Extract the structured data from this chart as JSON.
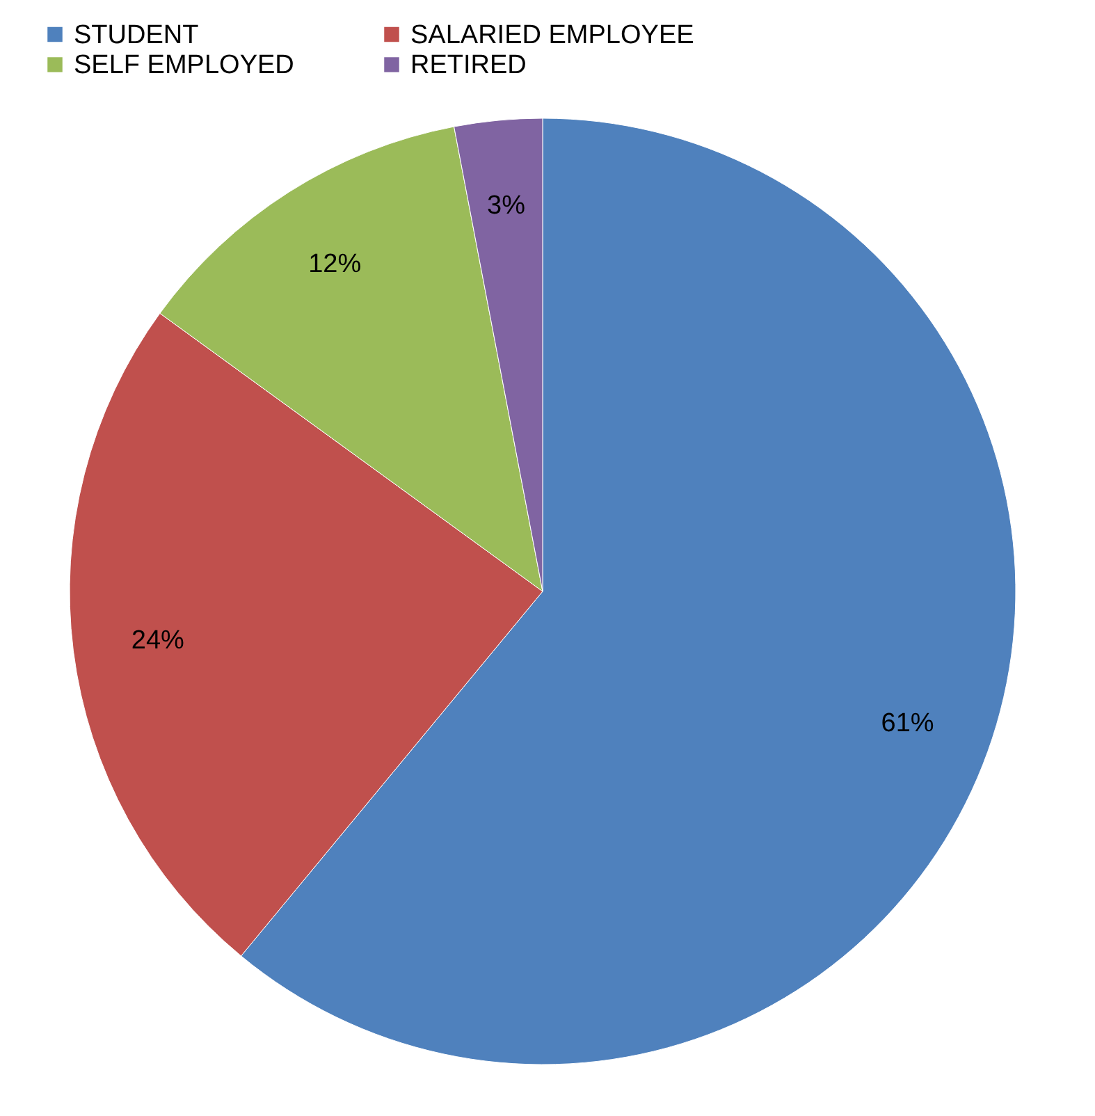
{
  "chart_data": {
    "type": "pie",
    "categories": [
      "STUDENT",
      "SALARIED EMPLOYEE",
      "SELF EMPLOYED",
      "RETIRED"
    ],
    "values": [
      61,
      24,
      12,
      3
    ],
    "colors": [
      "#4f81bd",
      "#c0504d",
      "#9bbb59",
      "#8064a2"
    ],
    "value_labels": [
      "61%",
      "24%",
      "12%",
      "3%"
    ],
    "legend": "top"
  }
}
